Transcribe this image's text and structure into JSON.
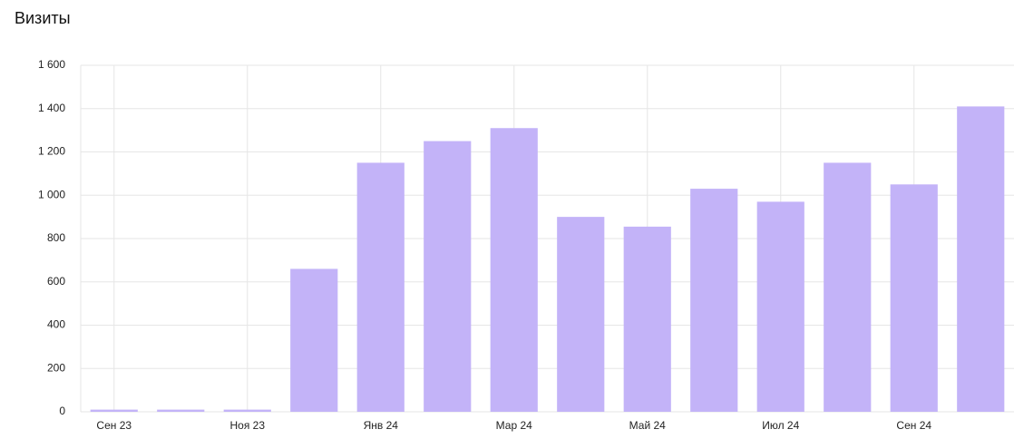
{
  "chart_data": {
    "type": "bar",
    "title": "Визиты",
    "categories": [
      "Сен 23",
      null,
      "Ноя 23",
      null,
      "Янв 24",
      null,
      "Мар 24",
      null,
      "Май 24",
      null,
      "Июл 24",
      null,
      "Сен 24",
      null
    ],
    "values": [
      10,
      10,
      10,
      660,
      1150,
      1250,
      1310,
      900,
      855,
      1030,
      970,
      1150,
      1050,
      1410
    ],
    "color": "#c3b3f8",
    "ylim": [
      0,
      1600
    ],
    "yticks": [
      0,
      200,
      400,
      600,
      800,
      {
        "value": 1000,
        "label": "1 000"
      },
      {
        "value": 1200,
        "label": "1 200"
      },
      {
        "value": 1400,
        "label": "1 400"
      },
      {
        "value": 1600,
        "label": "1 600"
      }
    ],
    "grid": true
  }
}
